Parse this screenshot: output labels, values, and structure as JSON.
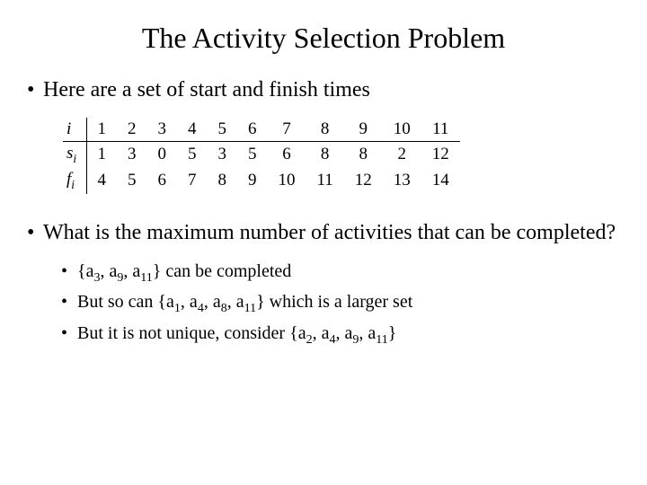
{
  "title": "The Activity Selection Problem",
  "intro": "Here are a set of start and finish times",
  "table": {
    "rows": [
      {
        "head": "i",
        "sub": "",
        "cells": [
          "1",
          "2",
          "3",
          "4",
          "5",
          "6",
          "7",
          "8",
          "9",
          "10",
          "11"
        ]
      },
      {
        "head": "s",
        "sub": "i",
        "cells": [
          "1",
          "3",
          "0",
          "5",
          "3",
          "5",
          "6",
          "8",
          "8",
          "2",
          "12"
        ]
      },
      {
        "head": "f",
        "sub": "i",
        "cells": [
          "4",
          "5",
          "6",
          "7",
          "8",
          "9",
          "10",
          "11",
          "12",
          "13",
          "14"
        ]
      }
    ]
  },
  "question": "What is the maximum number of activities that can be completed?",
  "sub1_pre": "{a",
  "sub1_a": "3",
  "sub1_m1": ", a",
  "sub1_b": "9",
  "sub1_m2": ", a",
  "sub1_c": "11",
  "sub1_post": "} can be completed",
  "sub2_pre": "But so can {a",
  "sub2_a": "1",
  "sub2_m1": ", a",
  "sub2_b": "4",
  "sub2_m2": ", a",
  "sub2_c": "8",
  "sub2_m3": ", a",
  "sub2_d": "11",
  "sub2_post": "} which is a larger set",
  "sub3_pre": "But it is not unique, consider {a",
  "sub3_a": "2",
  "sub3_m1": ", a",
  "sub3_b": "4",
  "sub3_m2": ", a",
  "sub3_c": "9",
  "sub3_m3": ", a",
  "sub3_d": "11",
  "sub3_post": "}"
}
